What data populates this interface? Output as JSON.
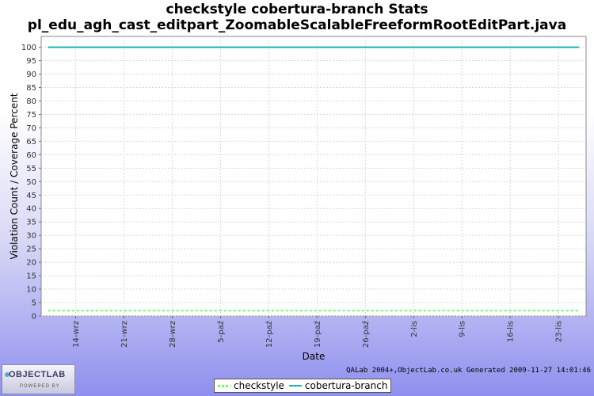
{
  "chart_data": {
    "type": "line",
    "title": "checkstyle cobertura-branch  Stats",
    "subtitle": "pl_edu_agh_cast_editpart_ZoomableScalableFreeformRootEditPart.java",
    "xlabel": "Date",
    "ylabel": "Violation Count / Coverage Percent",
    "ylim": [
      0,
      104
    ],
    "yticks": [
      0,
      5,
      10,
      15,
      20,
      25,
      30,
      35,
      40,
      45,
      50,
      55,
      60,
      65,
      70,
      75,
      80,
      85,
      90,
      95,
      100
    ],
    "xlim": [
      "2009-09-09",
      "2009-11-27"
    ],
    "xticks": [
      {
        "date": "2009-09-14",
        "label": "14-wrz"
      },
      {
        "date": "2009-09-21",
        "label": "21-wrz"
      },
      {
        "date": "2009-09-28",
        "label": "28-wrz"
      },
      {
        "date": "2009-10-05",
        "label": "5-paź"
      },
      {
        "date": "2009-10-12",
        "label": "12-paź"
      },
      {
        "date": "2009-10-19",
        "label": "19-paź"
      },
      {
        "date": "2009-10-26",
        "label": "26-paź"
      },
      {
        "date": "2009-11-02",
        "label": "2-lis"
      },
      {
        "date": "2009-11-09",
        "label": "9-lis"
      },
      {
        "date": "2009-11-16",
        "label": "16-lis"
      },
      {
        "date": "2009-11-23",
        "label": "23-lis"
      }
    ],
    "grid": true,
    "legend_position": "bottom",
    "series": [
      {
        "name": "checkstyle",
        "color": "#66ff66",
        "style": "dashed",
        "x": [
          "2009-09-10",
          "2009-11-26"
        ],
        "values": [
          2,
          2
        ]
      },
      {
        "name": "cobertura-branch",
        "color": "#1ab3b3",
        "style": "solid",
        "x": [
          "2009-09-10",
          "2009-11-26"
        ],
        "values": [
          100,
          100
        ]
      }
    ]
  },
  "footer": {
    "generated": "QALab 2004+,ObjectLab.co.uk Generated 2009-11-27 14:01:46"
  },
  "logo": {
    "name": "OBJECTLAB",
    "tagline": "POWERED BY"
  }
}
